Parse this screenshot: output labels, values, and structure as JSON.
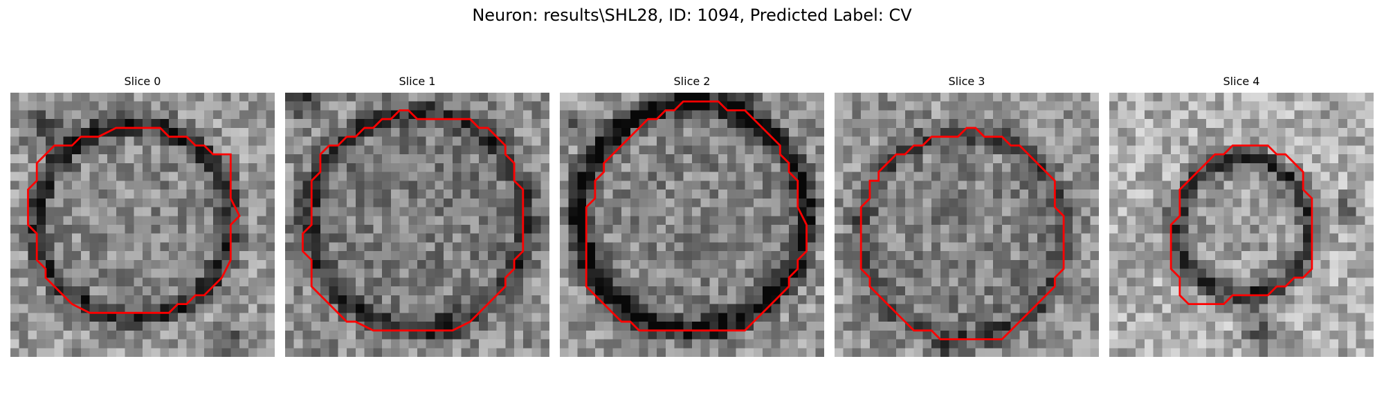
{
  "figure": {
    "title": "Neuron: results\\SHL28, ID: 1094, Predicted Label: CV",
    "contour_color": "#ff0000",
    "colormap": "grayscale",
    "panels": [
      {
        "title": "Slice 0",
        "brightness": 0.6,
        "ring_darkness": 0.45
      },
      {
        "title": "Slice 1",
        "brightness": 0.55,
        "ring_darkness": 0.35
      },
      {
        "title": "Slice 2",
        "brightness": 0.58,
        "ring_darkness": 0.55
      },
      {
        "title": "Slice 3",
        "brightness": 0.57,
        "ring_darkness": 0.3
      },
      {
        "title": "Slice 4",
        "brightness": 0.68,
        "ring_darkness": 0.45
      }
    ]
  }
}
